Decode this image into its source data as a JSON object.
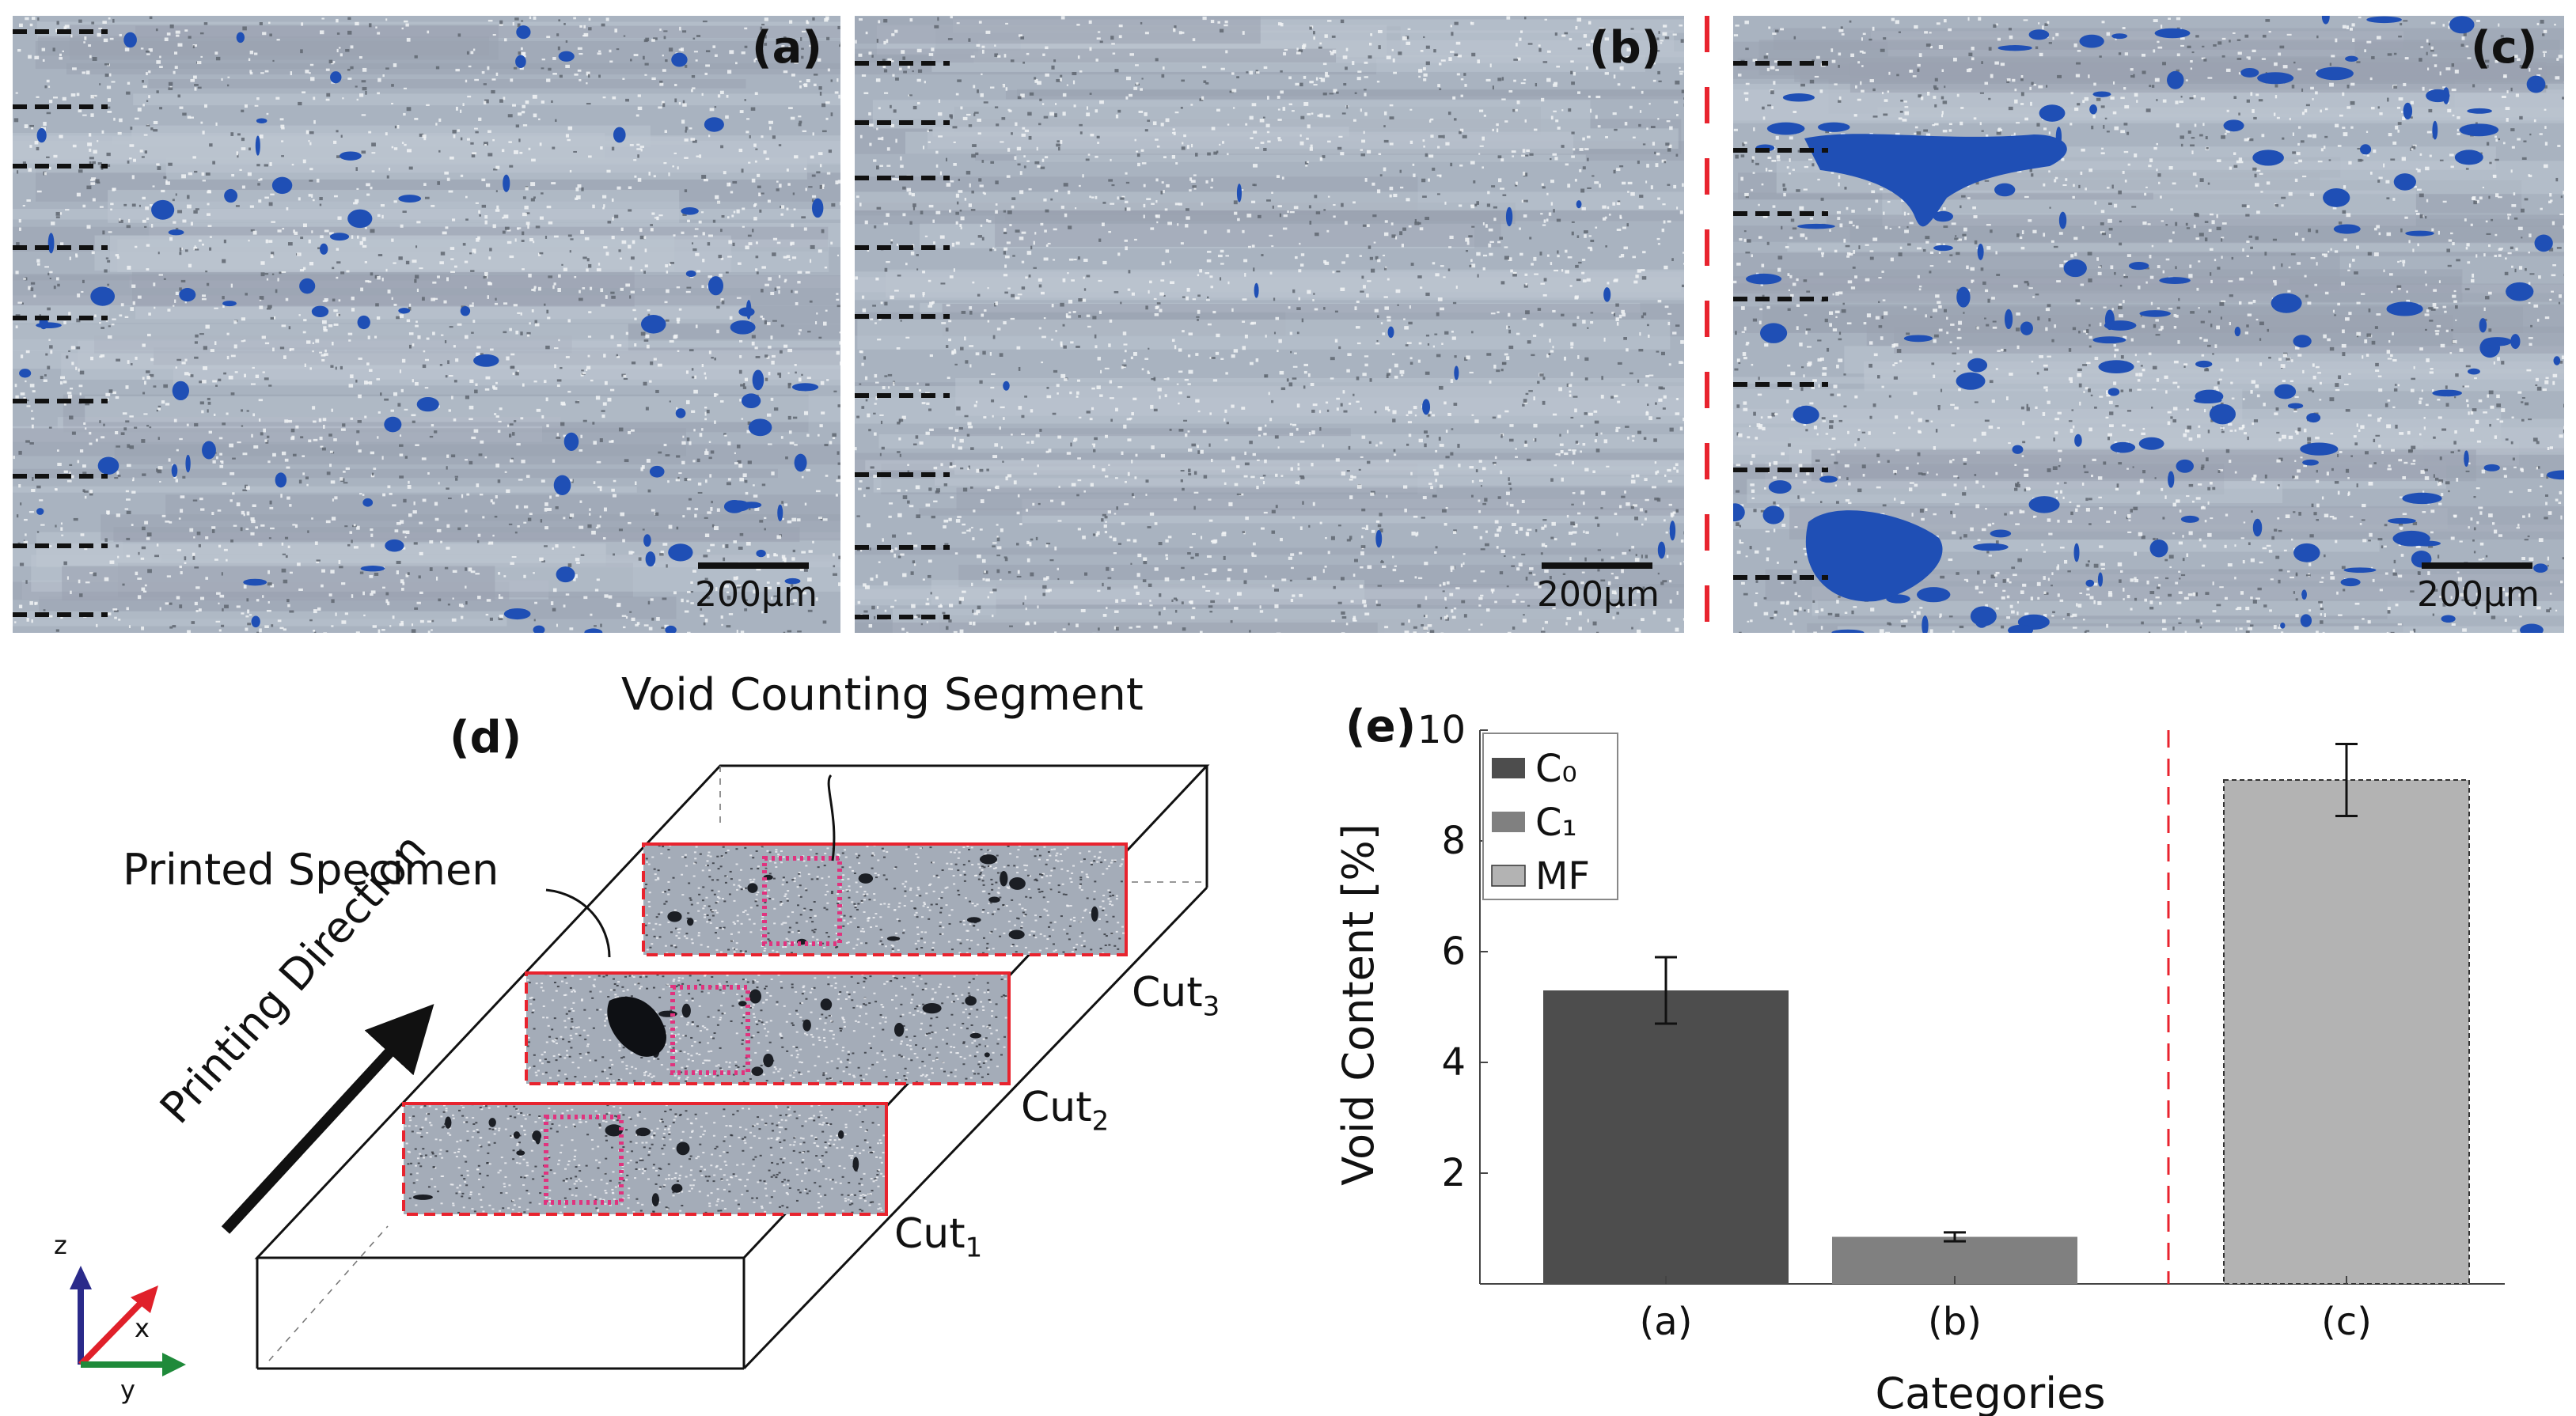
{
  "micrographs": [
    {
      "label": "(a)",
      "scale_bar": "200µm"
    },
    {
      "label": "(b)",
      "scale_bar": "200µm"
    },
    {
      "label": "(c)",
      "scale_bar": "200µm"
    }
  ],
  "diagram": {
    "panel_label": "(d)",
    "void_counting_segment": "Void Counting Segment",
    "printed_specimen": "Printed Specimen",
    "printing_direction": "Printing Direction",
    "cuts": [
      {
        "name": "Cut",
        "sub": "1"
      },
      {
        "name": "Cut",
        "sub": "2"
      },
      {
        "name": "Cut",
        "sub": "3"
      }
    ],
    "axes": {
      "z": "z",
      "x": "x",
      "y": "y"
    }
  },
  "chart_data": {
    "type": "bar",
    "panel_label": "(e)",
    "title": "",
    "xlabel": "Categories",
    "ylabel": "Void Content [%]",
    "ylim": [
      0,
      10
    ],
    "yticks": [
      2,
      4,
      6,
      8,
      10
    ],
    "grid": false,
    "legend_position": "top-left",
    "categories": [
      "(a)",
      "(b)",
      "(c)"
    ],
    "values": [
      5.3,
      0.85,
      9.1
    ],
    "errors": [
      0.6,
      0.08,
      0.65
    ],
    "series_names": [
      "C₀",
      "C₁",
      "MF"
    ],
    "colors": [
      "#4d4d4d",
      "#808080",
      "#b3b3b3"
    ]
  },
  "colors": {
    "void_blue": "#1f4fb5",
    "cut_red": "#e8232e",
    "segment_magenta": "#e0337e",
    "axis_z": "#2a2a8a",
    "axis_x": "#e0202a",
    "axis_y": "#1f8a3a"
  }
}
